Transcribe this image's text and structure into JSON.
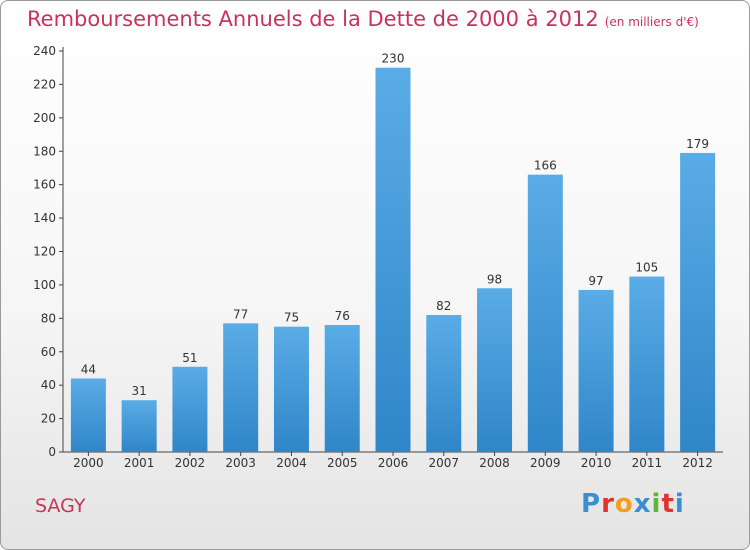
{
  "title": "Remboursements Annuels de la Dette de 2000 à 2012",
  "title_unit": "(en milliers d'€)",
  "place": "SAGY",
  "logo": "Proxiti",
  "colors": {
    "title": "#c8335a",
    "bar_light": "#5aace6",
    "bar_dark": "#2f86c8",
    "logo": [
      "#3a8fd0",
      "#e0332c",
      "#f0a020",
      "#3a8fd0",
      "#5cb82e",
      "#e0332c",
      "#3a8fd0"
    ]
  },
  "chart_data": {
    "type": "bar",
    "categories": [
      "2000",
      "2001",
      "2002",
      "2003",
      "2004",
      "2005",
      "2006",
      "2007",
      "2008",
      "2009",
      "2010",
      "2011",
      "2012"
    ],
    "values": [
      44,
      31,
      51,
      77,
      75,
      76,
      230,
      82,
      98,
      166,
      97,
      105,
      179
    ],
    "ylim": [
      0,
      240
    ],
    "yticks": [
      0,
      20,
      40,
      60,
      80,
      100,
      120,
      140,
      160,
      180,
      200,
      220,
      240
    ],
    "grid": false,
    "xlabel": "",
    "ylabel": ""
  }
}
